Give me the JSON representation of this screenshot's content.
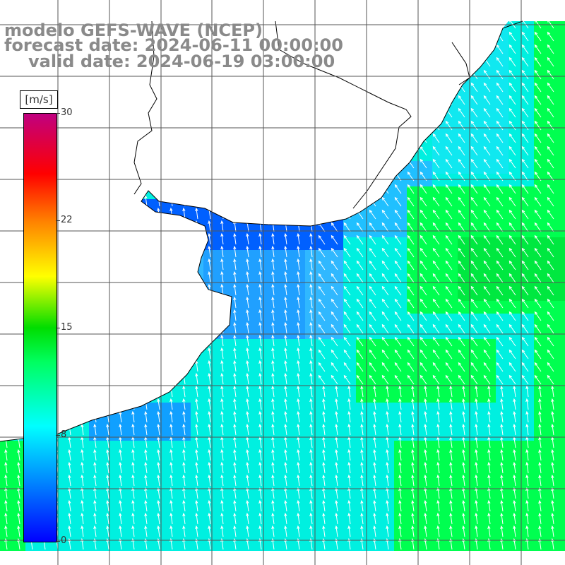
{
  "title": {
    "line1": "modelo GEFS-WAVE (NCEP)",
    "line2": "forecast date: 2024-06-11 00:00:00",
    "line3": "valid date: 2024-06-19 03:00:00"
  },
  "colorbar": {
    "unit": "[m/s]",
    "ticks": [
      "30",
      "22",
      "15",
      "8",
      "0"
    ],
    "range": [
      0,
      30
    ],
    "colors": [
      "#0000ff",
      "#00a0ff",
      "#00ffff",
      "#00ff00",
      "#ffff00",
      "#ff8000",
      "#ff0000",
      "#ff0080",
      "#c00080"
    ]
  },
  "map": {
    "variable": "wind speed",
    "land_color": "#ffffff",
    "grid_color": "#555555",
    "arrow_color": "#ffffff"
  }
}
